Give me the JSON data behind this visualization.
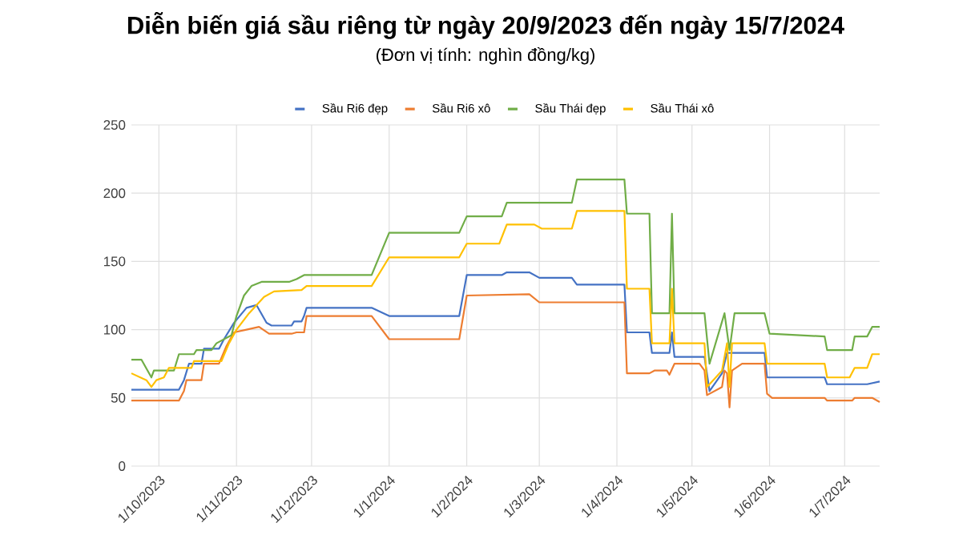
{
  "chart_data": {
    "type": "line",
    "title": "Diễn biến giá sầu riêng từ ngày 20/9/2023 đến ngày 15/7/2024",
    "subtitle": "(Đơn vị tính: nghìn đồng/kg)",
    "xlim": [
      "2023-09-20",
      "2024-07-15"
    ],
    "xticks": [
      {
        "value": "2023-10-01",
        "label": "1/10/2023"
      },
      {
        "value": "2023-11-01",
        "label": "1/11/2023"
      },
      {
        "value": "2023-12-01",
        "label": "1/12/2023"
      },
      {
        "value": "2024-01-01",
        "label": "1/1/2024"
      },
      {
        "value": "2024-02-01",
        "label": "1/2/2024"
      },
      {
        "value": "2024-03-01",
        "label": "1/3/2024"
      },
      {
        "value": "2024-04-01",
        "label": "1/4/2024"
      },
      {
        "value": "2024-05-01",
        "label": "1/5/2024"
      },
      {
        "value": "2024-06-01",
        "label": "1/6/2024"
      },
      {
        "value": "2024-07-01",
        "label": "1/7/2024"
      }
    ],
    "ylim": [
      0,
      250
    ],
    "yticks": [
      0,
      50,
      100,
      150,
      200,
      250
    ],
    "grid": true,
    "legend": "top",
    "series": [
      {
        "name": "Sầu Ri6 đẹp",
        "color": "#4472c4",
        "x": [
          "2023-09-20",
          "2023-10-09",
          "2023-10-11",
          "2023-10-13",
          "2023-10-18",
          "2023-10-19",
          "2023-10-25",
          "2023-10-27",
          "2023-10-31",
          "2023-11-05",
          "2023-11-09",
          "2023-11-13",
          "2023-11-15",
          "2023-11-23",
          "2023-11-24",
          "2023-11-27",
          "2023-11-28",
          "2023-11-29",
          "2023-12-25",
          "2024-01-01",
          "2024-01-29",
          "2024-02-01",
          "2024-02-15",
          "2024-02-17",
          "2024-02-26",
          "2024-03-01",
          "2024-03-14",
          "2024-03-16",
          "2024-04-04",
          "2024-04-05",
          "2024-04-14",
          "2024-04-15",
          "2024-04-22",
          "2024-04-23",
          "2024-04-24",
          "2024-05-06",
          "2024-05-08",
          "2024-05-13",
          "2024-05-15",
          "2024-05-30",
          "2024-05-31",
          "2024-06-23",
          "2024-06-24",
          "2024-07-10",
          "2024-07-15"
        ],
        "values": [
          56,
          56,
          63,
          75,
          75,
          86,
          86,
          93,
          105,
          116,
          118,
          105,
          103,
          103,
          106,
          106,
          110,
          116,
          116,
          110,
          110,
          140,
          140,
          142,
          142,
          138,
          138,
          133,
          133,
          98,
          98,
          83,
          83,
          98,
          80,
          80,
          55,
          68,
          83,
          83,
          65,
          65,
          60,
          60,
          62
        ]
      },
      {
        "name": "Sầu Ri6 xô",
        "color": "#ed7d31",
        "x": [
          "2023-09-20",
          "2023-10-09",
          "2023-10-11",
          "2023-10-12",
          "2023-10-18",
          "2023-10-19",
          "2023-10-25",
          "2023-10-28",
          "2023-10-31",
          "2023-11-05",
          "2023-11-10",
          "2023-11-14",
          "2023-11-23",
          "2023-11-25",
          "2023-11-28",
          "2023-11-29",
          "2023-12-25",
          "2024-01-01",
          "2024-01-29",
          "2024-02-01",
          "2024-02-26",
          "2024-03-01",
          "2024-04-04",
          "2024-04-05",
          "2024-04-14",
          "2024-04-16",
          "2024-04-21",
          "2024-04-22",
          "2024-04-24",
          "2024-05-04",
          "2024-05-06",
          "2024-05-07",
          "2024-05-13",
          "2024-05-14",
          "2024-05-15",
          "2024-05-16",
          "2024-05-17",
          "2024-05-21",
          "2024-05-30",
          "2024-05-31",
          "2024-06-02",
          "2024-06-23",
          "2024-06-24",
          "2024-07-04",
          "2024-07-05",
          "2024-07-12",
          "2024-07-15"
        ],
        "values": [
          48,
          48,
          55,
          63,
          63,
          75,
          75,
          88,
          98,
          100,
          102,
          97,
          97,
          98,
          98,
          110,
          110,
          93,
          93,
          125,
          126,
          120,
          120,
          68,
          68,
          70,
          70,
          67,
          75,
          75,
          70,
          52,
          58,
          70,
          68,
          43,
          70,
          75,
          75,
          53,
          50,
          50,
          48,
          48,
          50,
          50,
          47
        ]
      },
      {
        "name": "Sầu Thái đẹp",
        "color": "#70ad47",
        "x": [
          "2023-09-20",
          "2023-09-24",
          "2023-09-28",
          "2023-09-29",
          "2023-10-07",
          "2023-10-09",
          "2023-10-15",
          "2023-10-16",
          "2023-10-22",
          "2023-10-24",
          "2023-10-30",
          "2023-11-01",
          "2023-11-04",
          "2023-11-07",
          "2023-11-11",
          "2023-11-22",
          "2023-11-25",
          "2023-11-28",
          "2023-12-25",
          "2024-01-01",
          "2024-01-29",
          "2024-02-01",
          "2024-02-15",
          "2024-02-17",
          "2024-03-14",
          "2024-03-16",
          "2024-04-04",
          "2024-04-05",
          "2024-04-14",
          "2024-04-15",
          "2024-04-22",
          "2024-04-23",
          "2024-04-24",
          "2024-05-06",
          "2024-05-08",
          "2024-05-14",
          "2024-05-16",
          "2024-05-18",
          "2024-05-30",
          "2024-06-01",
          "2024-06-23",
          "2024-06-24",
          "2024-07-04",
          "2024-07-05",
          "2024-07-10",
          "2024-07-12",
          "2024-07-15"
        ],
        "values": [
          78,
          78,
          65,
          70,
          70,
          82,
          82,
          85,
          85,
          90,
          96,
          110,
          125,
          132,
          135,
          135,
          137,
          140,
          140,
          171,
          171,
          183,
          183,
          193,
          193,
          210,
          210,
          185,
          185,
          112,
          112,
          185,
          112,
          112,
          75,
          112,
          85,
          112,
          112,
          97,
          95,
          85,
          85,
          95,
          95,
          102,
          102
        ]
      },
      {
        "name": "Sầu Thái xô",
        "color": "#ffc000",
        "x": [
          "2023-09-20",
          "2023-09-26",
          "2023-09-28",
          "2023-09-30",
          "2023-10-03",
          "2023-10-05",
          "2023-10-14",
          "2023-10-15",
          "2023-10-26",
          "2023-10-29",
          "2023-11-01",
          "2023-11-06",
          "2023-11-12",
          "2023-11-16",
          "2023-11-27",
          "2023-11-29",
          "2023-12-25",
          "2024-01-01",
          "2024-01-29",
          "2024-02-01",
          "2024-02-14",
          "2024-02-17",
          "2024-02-28",
          "2024-03-02",
          "2024-03-14",
          "2024-03-16",
          "2024-04-04",
          "2024-04-05",
          "2024-04-14",
          "2024-04-15",
          "2024-04-22",
          "2024-04-23",
          "2024-04-24",
          "2024-05-06",
          "2024-05-07",
          "2024-05-13",
          "2024-05-15",
          "2024-05-16",
          "2024-05-17",
          "2024-05-30",
          "2024-05-31",
          "2024-06-23",
          "2024-06-24",
          "2024-07-03",
          "2024-07-05",
          "2024-07-10",
          "2024-07-12",
          "2024-07-15"
        ],
        "values": [
          68,
          63,
          58,
          63,
          65,
          72,
          72,
          77,
          77,
          90,
          100,
          112,
          124,
          128,
          129,
          132,
          132,
          153,
          153,
          163,
          163,
          177,
          177,
          174,
          174,
          187,
          187,
          130,
          130,
          90,
          90,
          130,
          90,
          90,
          58,
          70,
          90,
          58,
          90,
          90,
          75,
          75,
          65,
          65,
          72,
          72,
          82,
          82
        ]
      }
    ]
  }
}
